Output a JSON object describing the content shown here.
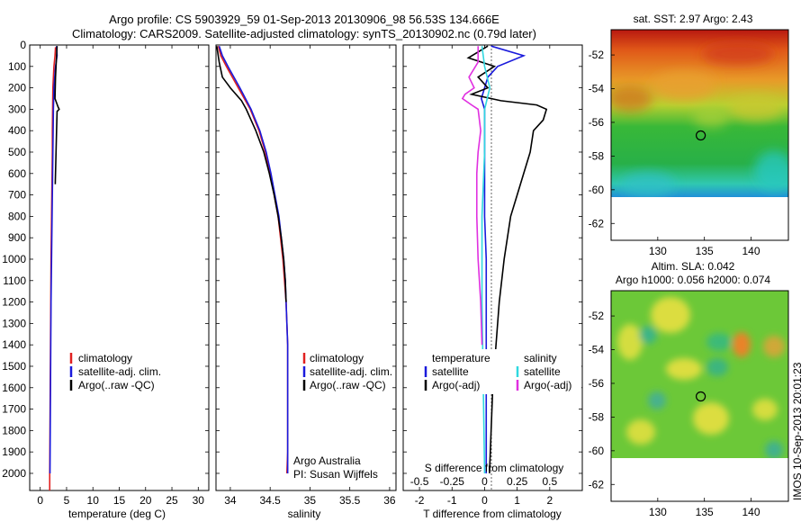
{
  "title_line1": "Argo profile: CS 5903929_59 01-Sep-2013 20130906_98 56.53S 134.666E",
  "title_line2": "Climatology: CARS2009. Satellite-adjusted climatology: synTS_20130902.nc (0.79d later)",
  "side_stamp": "IMOS 10-Sep-2013 20:01:23",
  "colors": {
    "climatology": "#e02020",
    "satellite": "#1a1adc",
    "argo": "#000000",
    "sal_satellite": "#30d8e0",
    "sal_argo": "#e030e0"
  },
  "chart_data": [
    {
      "type": "line",
      "xlabel": "temperature (deg C)",
      "xticks": [
        "0",
        "5",
        "10",
        "15",
        "20",
        "25",
        "30"
      ],
      "xlim": [
        -2,
        32
      ],
      "ylim": [
        2080,
        0
      ],
      "yticks": [
        "0",
        "100",
        "200",
        "300",
        "400",
        "500",
        "600",
        "700",
        "800",
        "900",
        "1000",
        "1100",
        "1200",
        "1300",
        "1400",
        "1500",
        "1600",
        "1700",
        "1800",
        "1900",
        "2000"
      ],
      "legend": [
        "climatology",
        "satellite-adj. clim.",
        "Argo(..raw -QC)"
      ],
      "series": [
        {
          "name": "climatology",
          "y": [
            10,
            50,
            100,
            200,
            300,
            400,
            500,
            600,
            700,
            800,
            900,
            1000,
            1200,
            1400,
            1600,
            1800,
            2000,
            2080
          ],
          "values": [
            2.9,
            2.8,
            2.6,
            2.4,
            2.35,
            2.3,
            2.3,
            2.25,
            2.2,
            2.15,
            2.1,
            2.05,
            2.0,
            1.95,
            1.9,
            1.85,
            1.8,
            1.8
          ]
        },
        {
          "name": "satellite-adj. clim.",
          "y": [
            5,
            50,
            100,
            200,
            300,
            400,
            500,
            600,
            800,
            1000,
            1200,
            1400,
            1600,
            1800,
            2000
          ],
          "values": [
            3.1,
            3.2,
            2.9,
            2.6,
            2.5,
            2.45,
            2.4,
            2.35,
            2.25,
            2.15,
            2.05,
            2.0,
            1.95,
            1.9,
            1.85
          ]
        },
        {
          "name": "Argo(..raw -QC)",
          "y": [
            5,
            50,
            150,
            250,
            290,
            300,
            310,
            400,
            500,
            600,
            650
          ],
          "values": [
            3.2,
            3.1,
            2.9,
            2.8,
            3.4,
            3.6,
            3.2,
            3.1,
            3.0,
            2.9,
            2.85
          ]
        }
      ]
    },
    {
      "type": "line",
      "xlabel": "salinity",
      "xticks": [
        "34",
        "34.5",
        "35",
        "35.5",
        "36"
      ],
      "xlim": [
        33.82,
        36.08
      ],
      "ylim": [
        2080,
        0
      ],
      "legend": [
        "climatology",
        "satellite-adj. clim.",
        "Argo(..raw -QC)"
      ],
      "series": [
        {
          "name": "climatology",
          "y": [
            5,
            50,
            100,
            200,
            300,
            400,
            500,
            600,
            700,
            800,
            900,
            1000,
            1100,
            1200,
            1300,
            1400,
            1500,
            1600,
            1700,
            1800,
            1900,
            2000
          ],
          "values": [
            33.85,
            33.88,
            33.95,
            34.1,
            34.25,
            34.36,
            34.44,
            34.5,
            34.55,
            34.6,
            34.63,
            34.66,
            34.68,
            34.7,
            34.71,
            34.72,
            34.72,
            34.72,
            34.72,
            34.72,
            34.72,
            34.71
          ]
        },
        {
          "name": "satellite-adj. clim.",
          "y": [
            5,
            50,
            100,
            200,
            300,
            400,
            500,
            600,
            700,
            800,
            900,
            1000,
            1100,
            1200,
            1300,
            1400,
            1500,
            1600,
            1700,
            1800,
            1900,
            2000
          ],
          "values": [
            33.86,
            33.9,
            33.97,
            34.12,
            34.26,
            34.37,
            34.45,
            34.51,
            34.56,
            34.61,
            34.64,
            34.67,
            34.69,
            34.7,
            34.71,
            34.72,
            34.72,
            34.72,
            34.72,
            34.72,
            34.72,
            34.72
          ]
        },
        {
          "name": "Argo(..raw -QC)",
          "y": [
            5,
            80,
            150,
            200,
            260,
            300,
            350,
            400,
            500,
            600,
            700,
            800,
            900,
            1000,
            1100,
            1200
          ],
          "values": [
            33.83,
            33.86,
            33.9,
            34.0,
            34.14,
            34.2,
            34.26,
            34.32,
            34.42,
            34.49,
            34.55,
            34.6,
            34.64,
            34.67,
            34.69,
            34.7
          ]
        }
      ],
      "annotation": [
        "Argo Australia",
        "PI: Susan Wijffels"
      ]
    },
    {
      "type": "line",
      "xlabel": "T difference from climatology",
      "xlabel_top": "S difference from climatology",
      "xticks": [
        "-2",
        "-1",
        "0",
        "1",
        "2"
      ],
      "xticks_top": [
        "-0.5",
        "-0.25",
        "0",
        "0.25",
        "0.5"
      ],
      "xlim": [
        -2.5,
        3.0
      ],
      "ylim": [
        2080,
        0
      ],
      "legend_headers": [
        "temperature",
        "salinity"
      ],
      "legend": [
        "satellite",
        "Argo(-adj)",
        "satellite",
        "Argo(-adj)"
      ],
      "series": [
        {
          "name": "satellite",
          "group": "temperature",
          "y": [
            5,
            50,
            100,
            150,
            200,
            250,
            300,
            400,
            600,
            800,
            1000,
            1400,
            1800,
            2000
          ],
          "values": [
            0.2,
            1.2,
            0.4,
            0.1,
            0.0,
            -0.1,
            0.0,
            0.0,
            0.0,
            0.0,
            0.05,
            0.05,
            0.05,
            0.05
          ]
        },
        {
          "name": "Argo(-adj)",
          "group": "temperature",
          "y": [
            5,
            60,
            100,
            150,
            200,
            230,
            260,
            280,
            300,
            350,
            400,
            500,
            600,
            700,
            800,
            1000,
            1200,
            1400,
            1600,
            1800,
            2000
          ],
          "values": [
            0.1,
            -0.5,
            0.3,
            -0.2,
            0.1,
            -0.4,
            0.5,
            1.6,
            1.9,
            1.8,
            1.5,
            1.4,
            1.2,
            1.0,
            0.8,
            0.6,
            0.45,
            0.35,
            0.25,
            0.2,
            0.15
          ]
        },
        {
          "name": "satellite",
          "group": "salinity",
          "y": [
            5,
            100,
            200,
            300,
            500,
            800,
            1200,
            1600,
            2000
          ],
          "values": [
            -0.02,
            0.0,
            0.04,
            0.0,
            0.0,
            -0.02,
            -0.02,
            -0.01,
            0.0
          ]
        },
        {
          "name": "Argo(-adj)",
          "group": "salinity",
          "y": [
            5,
            80,
            150,
            200,
            230,
            250,
            280,
            300,
            400,
            500,
            600,
            800,
            1000,
            1200,
            1400
          ],
          "values": [
            -0.05,
            -0.05,
            -0.12,
            -0.08,
            -0.15,
            -0.17,
            -0.1,
            -0.05,
            -0.03,
            -0.05,
            -0.06,
            -0.06,
            -0.05,
            -0.03,
            -0.02
          ]
        }
      ]
    },
    {
      "type": "heatmap",
      "title": "sat. SST: 2.97  Argo: 2.43",
      "xticks": [
        "130",
        "135",
        "140"
      ],
      "yticks": [
        "-52",
        "-54",
        "-56",
        "-58",
        "-60",
        "-62"
      ],
      "xlim": [
        125,
        144
      ],
      "ylim": [
        -63,
        -50.5
      ],
      "data_ylim": [
        -60,
        -50.5
      ],
      "marker": {
        "lon": 134.666,
        "lat": -56.53
      }
    },
    {
      "type": "heatmap",
      "title_line1": "Altim. SLA: 0.042",
      "title_line2": "Argo h1000: 0.056 h2000: 0.074",
      "xticks": [
        "130",
        "135",
        "140"
      ],
      "yticks": [
        "-52",
        "-54",
        "-56",
        "-58",
        "-60",
        "-62"
      ],
      "xlim": [
        125,
        144
      ],
      "ylim": [
        -63,
        -50.5
      ],
      "data_ylim": [
        -60,
        -50.5
      ],
      "marker": {
        "lon": 134.666,
        "lat": -56.53
      }
    }
  ]
}
